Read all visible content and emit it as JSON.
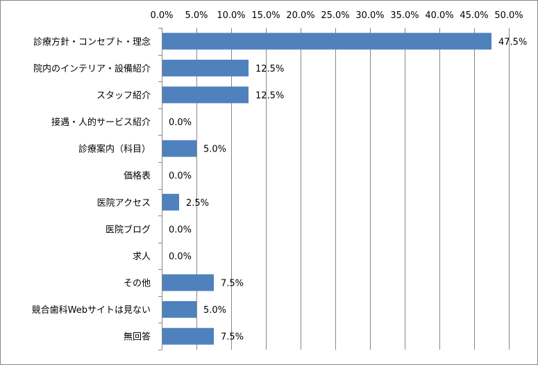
{
  "chart_data": {
    "type": "bar",
    "orientation": "horizontal",
    "title": "",
    "xlabel": "",
    "ylabel": "",
    "xlim": [
      0,
      50
    ],
    "x_ticks": [
      "0.0%",
      "5.0%",
      "10.0%",
      "15.0%",
      "20.0%",
      "25.0%",
      "30.0%",
      "35.0%",
      "40.0%",
      "45.0%",
      "50.0%"
    ],
    "x_axis_position": "top",
    "grid": true,
    "legend": "none",
    "bar_color": "#4f81bd",
    "categories": [
      "診療方針・コンセプト・理念",
      "院内のインテリア・設備紹介",
      "スタッフ紹介",
      "接遇・人的サービス紹介",
      "診療案内（科目）",
      "価格表",
      "医院アクセス",
      "医院ブログ",
      "求人",
      "その他",
      "競合歯科Webサイトは見ない",
      "無回答"
    ],
    "values": [
      47.5,
      12.5,
      12.5,
      0.0,
      5.0,
      0.0,
      2.5,
      0.0,
      0.0,
      7.5,
      5.0,
      7.5
    ],
    "data_labels": [
      "47.5%",
      "12.5%",
      "12.5%",
      "0.0%",
      "5.0%",
      "0.0%",
      "2.5%",
      "0.0%",
      "0.0%",
      "7.5%",
      "5.0%",
      "7.5%"
    ]
  }
}
